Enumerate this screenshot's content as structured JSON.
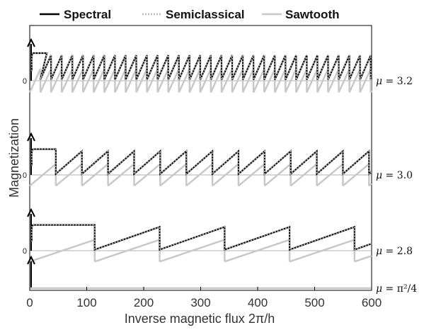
{
  "chart_data": {
    "type": "line",
    "xlabel": "Inverse magnetic flux 2π/h",
    "ylabel": "Magnetization",
    "xlim": [
      0,
      600
    ],
    "xticks": [
      0,
      100,
      200,
      300,
      400,
      500,
      600
    ],
    "grid": false,
    "legend_position": "top",
    "legend": [
      {
        "name": "Spectral",
        "style": "solid",
        "color": "#000000"
      },
      {
        "name": "Semiclassical",
        "style": "dotted",
        "color": "#bbbbbb"
      },
      {
        "name": "Sawtooth",
        "style": "solid",
        "color": "#c8c8c8"
      }
    ],
    "panels": [
      {
        "mu_label": "μ = 3.2",
        "mu_prefix": "μ",
        "mu_value": "= 3.2",
        "zero_label": "0",
        "spectral_period": 18.7,
        "spectral_x0": 30,
        "spectral_initial_plateau_end": 30,
        "sawtooth_period": 18.7,
        "sawtooth_amplitude": 1.0,
        "spectral_amplitude": 1.3
      },
      {
        "mu_label": "μ = 3.0",
        "mu_prefix": "μ",
        "mu_value": "= 3.0",
        "zero_label": "0",
        "spectral_period": 45.8,
        "spectral_x0": 45.8,
        "spectral_initial_plateau_end": 45.8,
        "sawtooth_period": 45.8,
        "sawtooth_amplitude": 1.0,
        "spectral_amplitude": 1.3
      },
      {
        "mu_label": "μ = 2.8",
        "mu_prefix": "μ",
        "mu_value": "= 2.8",
        "zero_label": "0",
        "spectral_period": 114,
        "spectral_x0": 114,
        "spectral_initial_plateau_end": 114,
        "sawtooth_period": 114,
        "sawtooth_amplitude": 1.0,
        "spectral_amplitude": 1.3
      },
      {
        "mu_label": "μ = π²/4",
        "mu_prefix": "μ",
        "mu_value": "= π²/4",
        "zero_label": "",
        "spectral_period": 0,
        "spectral_x0": 0,
        "spectral_initial_plateau_end": 0,
        "sawtooth_period": 0,
        "sawtooth_amplitude": 0,
        "spectral_amplitude": 0
      }
    ]
  }
}
